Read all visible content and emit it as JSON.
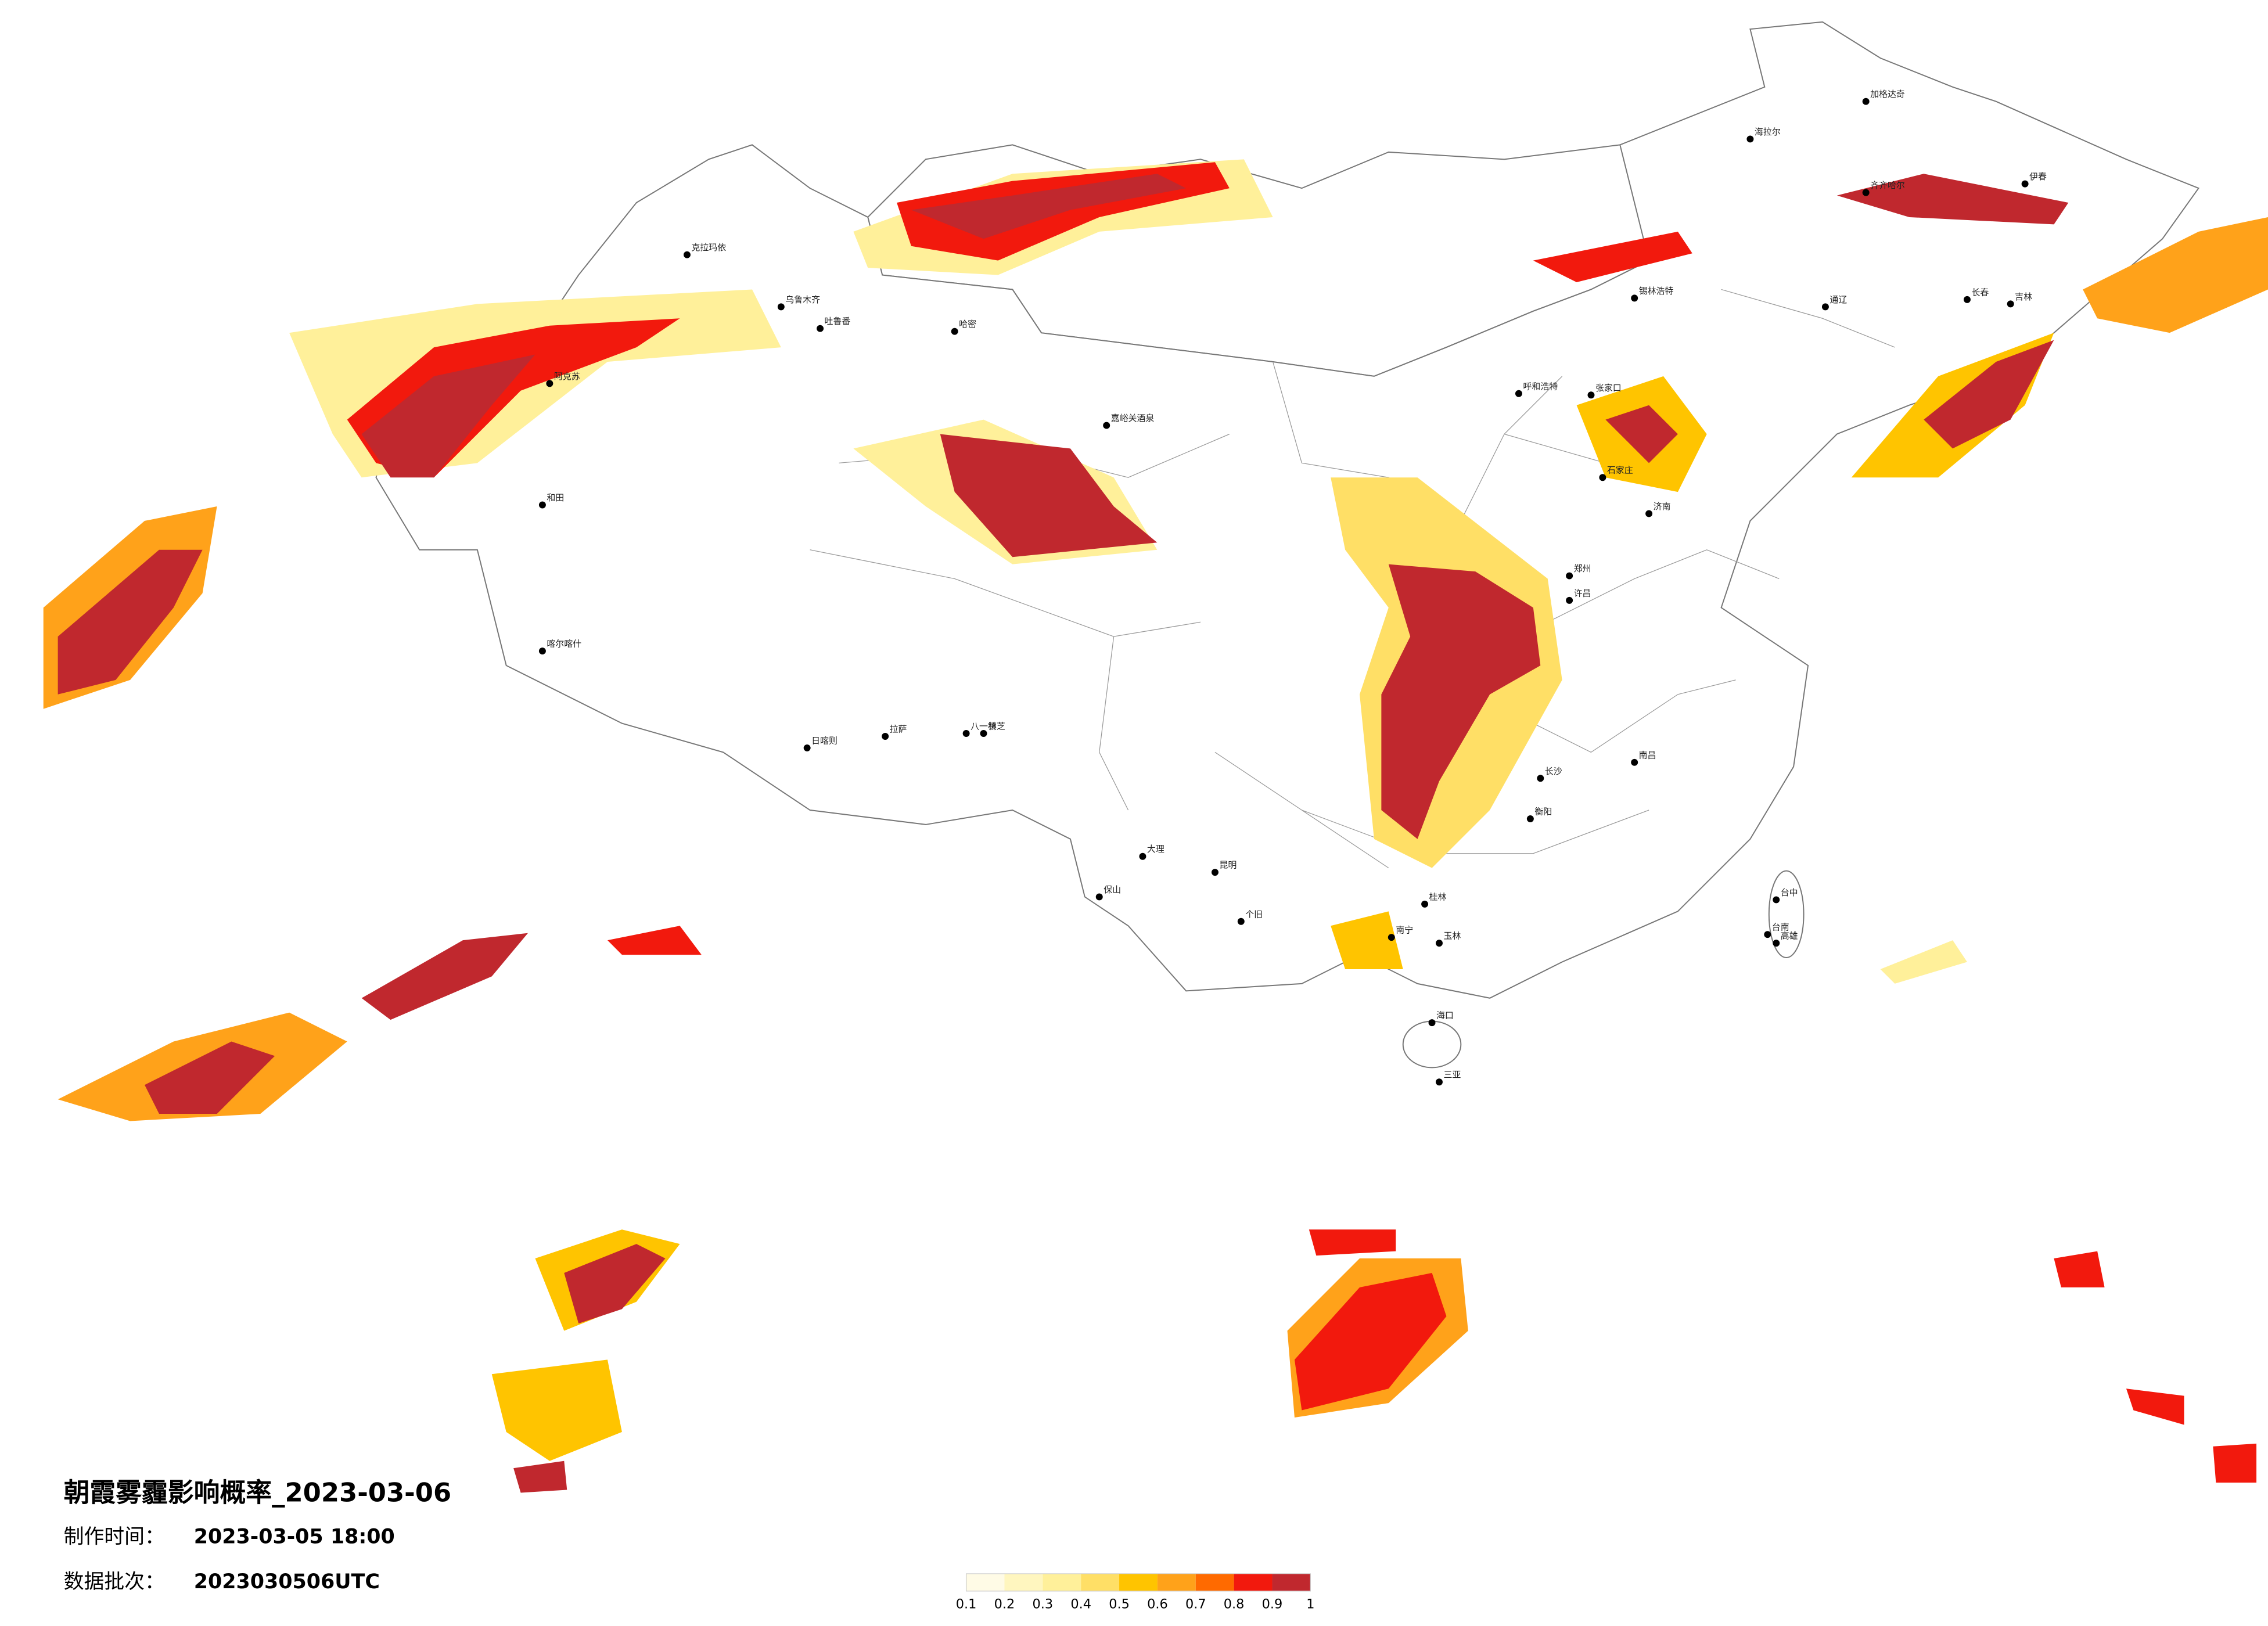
{
  "title": "朝霞雾霾影响概率_2023-03-06",
  "made_time_label": "制作时间：",
  "made_time": "2023-03-05 18:00",
  "batch_label": "数据批次：",
  "batch": "2023030506UTC",
  "legend": {
    "colors": [
      "#fffbe6",
      "#fff6bf",
      "#fff09a",
      "#ffdf66",
      "#ffc400",
      "#ffa21a",
      "#ff6a00",
      "#f2190d",
      "#c0282e"
    ],
    "labels": [
      0.1,
      0.2,
      0.3,
      0.4,
      0.5,
      0.6,
      0.7,
      0.8,
      0.9,
      1
    ]
  },
  "cities": [
    "克拉玛依",
    "乌鲁木齐",
    "吐鲁番",
    "哈密",
    "阿克苏",
    "和田",
    "喀尔喀什",
    "日喀则",
    "拉萨",
    "八一镇",
    "林芝",
    "嘉峪关酒泉",
    "加格达奇",
    "海拉尔",
    "齐齐哈尔",
    "伊春",
    "长春",
    "吉林",
    "通辽",
    "锡林浩特",
    "呼和浩特",
    "张家口",
    "石家庄",
    "济南",
    "郑州",
    "许昌",
    "长沙",
    "南昌",
    "衡阳",
    "桂林",
    "南宁",
    "玉林",
    "昆明",
    "大理",
    "保山",
    "个旧",
    "海口",
    "三亚",
    "台中",
    "台南",
    "高雄"
  ]
}
